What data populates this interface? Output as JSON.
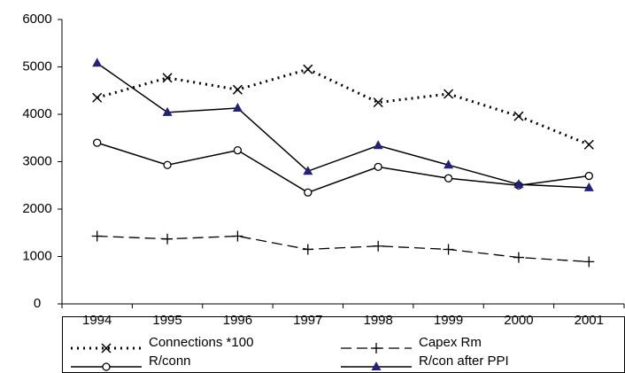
{
  "chart_data": {
    "type": "line",
    "categories": [
      "1994",
      "1995",
      "1996",
      "1997",
      "1998",
      "1999",
      "2000",
      "2001"
    ],
    "series": [
      {
        "name": "Connections *100",
        "color": "#000000",
        "marker": "x",
        "line_style": "dotted",
        "values": [
          4350,
          4770,
          4520,
          4950,
          4250,
          4430,
          3960,
          3360
        ]
      },
      {
        "name": "Capex Rm",
        "color": "#000000",
        "marker": "plus",
        "line_style": "dashed",
        "values": [
          1430,
          1370,
          1430,
          1150,
          1220,
          1150,
          980,
          890
        ]
      },
      {
        "name": "R/conn",
        "color": "#000000",
        "marker": "circle",
        "line_style": "solid",
        "values": [
          3400,
          2930,
          3240,
          2350,
          2890,
          2650,
          2500,
          2700
        ]
      },
      {
        "name": "R/con after PPI",
        "color": "#000000",
        "marker": "triangle",
        "marker_color": "#22227a",
        "line_style": "solid",
        "values": [
          5080,
          4040,
          4130,
          2800,
          3340,
          2930,
          2520,
          2450
        ]
      }
    ],
    "ylim": [
      0,
      6000
    ],
    "yticks": [
      0,
      1000,
      2000,
      3000,
      4000,
      5000,
      6000
    ],
    "grid": false,
    "legend": "bottom"
  }
}
